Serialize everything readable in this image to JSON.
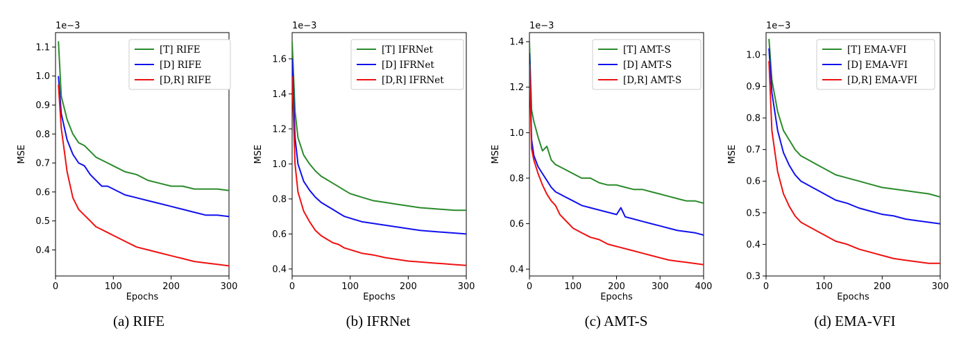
{
  "figure": {
    "panels": [
      {
        "caption": "(a) RIFE"
      },
      {
        "caption": "(b) IFRNet"
      },
      {
        "caption": "(c) AMT-S"
      },
      {
        "caption": "(d) EMA-VFI"
      }
    ]
  },
  "chart_data": [
    {
      "type": "line",
      "title": "",
      "xlabel": "Epochs",
      "ylabel": "MSE",
      "y_offset_label": "1e−3",
      "xlim": [
        0,
        300
      ],
      "ylim": [
        0.31,
        1.15
      ],
      "xticks": [
        0,
        100,
        200,
        300
      ],
      "yticks": [
        0.4,
        0.5,
        0.6,
        0.7,
        0.8,
        0.9,
        1.0,
        1.1
      ],
      "ytick_labels": [
        "0.4",
        "0.5",
        "0.6",
        "0.7",
        "0.8",
        "0.9",
        "1.0",
        "1.1"
      ],
      "legend_position": "top-right",
      "series": [
        {
          "name": "[T] RIFE",
          "color": "#2a8a2a",
          "x": [
            5,
            10,
            20,
            30,
            40,
            50,
            60,
            70,
            80,
            90,
            100,
            120,
            140,
            160,
            180,
            200,
            220,
            240,
            260,
            280,
            300
          ],
          "values": [
            1.12,
            0.93,
            0.85,
            0.8,
            0.77,
            0.76,
            0.74,
            0.72,
            0.71,
            0.7,
            0.69,
            0.67,
            0.66,
            0.64,
            0.63,
            0.62,
            0.62,
            0.61,
            0.61,
            0.61,
            0.605
          ]
        },
        {
          "name": "[D] RIFE",
          "color": "#1010ee",
          "x": [
            5,
            10,
            20,
            30,
            40,
            50,
            60,
            70,
            80,
            90,
            100,
            120,
            140,
            160,
            180,
            200,
            220,
            240,
            260,
            280,
            300
          ],
          "values": [
            1.0,
            0.87,
            0.78,
            0.73,
            0.7,
            0.69,
            0.66,
            0.64,
            0.62,
            0.62,
            0.61,
            0.59,
            0.58,
            0.57,
            0.56,
            0.55,
            0.54,
            0.53,
            0.52,
            0.52,
            0.515
          ]
        },
        {
          "name": "[D,R] RIFE",
          "color": "#ee1111",
          "x": [
            5,
            10,
            20,
            30,
            40,
            50,
            60,
            70,
            80,
            90,
            100,
            120,
            140,
            160,
            180,
            200,
            220,
            240,
            260,
            280,
            300
          ],
          "values": [
            0.97,
            0.82,
            0.67,
            0.58,
            0.54,
            0.52,
            0.5,
            0.48,
            0.47,
            0.46,
            0.45,
            0.43,
            0.41,
            0.4,
            0.39,
            0.38,
            0.37,
            0.36,
            0.355,
            0.35,
            0.345
          ]
        }
      ]
    },
    {
      "type": "line",
      "title": "",
      "xlabel": "Epochs",
      "ylabel": "MSE",
      "y_offset_label": "1e−3",
      "xlim": [
        0,
        300
      ],
      "ylim": [
        0.36,
        1.75
      ],
      "xticks": [
        0,
        100,
        200,
        300
      ],
      "yticks": [
        0.4,
        0.6,
        0.8,
        1.0,
        1.2,
        1.4,
        1.6
      ],
      "ytick_labels": [
        "0.4",
        "0.6",
        "0.8",
        "1.0",
        "1.2",
        "1.4",
        "1.6"
      ],
      "legend_position": "top-right",
      "series": [
        {
          "name": "[T] IFRNet",
          "color": "#2a8a2a",
          "x": [
            0,
            5,
            10,
            20,
            30,
            40,
            50,
            60,
            70,
            80,
            90,
            100,
            120,
            140,
            160,
            180,
            200,
            220,
            240,
            260,
            280,
            300
          ],
          "values": [
            1.7,
            1.3,
            1.15,
            1.05,
            1.0,
            0.96,
            0.93,
            0.91,
            0.89,
            0.87,
            0.85,
            0.83,
            0.81,
            0.79,
            0.78,
            0.77,
            0.76,
            0.75,
            0.745,
            0.74,
            0.735,
            0.735
          ]
        },
        {
          "name": "[D] IFRNet",
          "color": "#1010ee",
          "x": [
            0,
            5,
            10,
            20,
            30,
            40,
            50,
            60,
            70,
            80,
            90,
            100,
            120,
            140,
            160,
            180,
            200,
            220,
            240,
            260,
            280,
            300
          ],
          "values": [
            1.6,
            1.15,
            1.0,
            0.9,
            0.85,
            0.81,
            0.78,
            0.76,
            0.74,
            0.72,
            0.7,
            0.69,
            0.67,
            0.66,
            0.65,
            0.64,
            0.63,
            0.62,
            0.615,
            0.61,
            0.605,
            0.6
          ]
        },
        {
          "name": "[D,R] IFRNet",
          "color": "#ee1111",
          "x": [
            0,
            5,
            10,
            20,
            30,
            40,
            50,
            60,
            70,
            80,
            90,
            100,
            120,
            140,
            160,
            180,
            200,
            220,
            240,
            260,
            280,
            300
          ],
          "values": [
            1.5,
            1.0,
            0.84,
            0.73,
            0.67,
            0.62,
            0.59,
            0.57,
            0.55,
            0.54,
            0.52,
            0.51,
            0.49,
            0.48,
            0.465,
            0.455,
            0.445,
            0.44,
            0.435,
            0.43,
            0.425,
            0.42
          ]
        }
      ]
    },
    {
      "type": "line",
      "title": "",
      "xlabel": "Epochs",
      "ylabel": "MSE",
      "y_offset_label": "1e−3",
      "xlim": [
        0,
        400
      ],
      "ylim": [
        0.37,
        1.44
      ],
      "xticks": [
        0,
        100,
        200,
        300,
        400
      ],
      "yticks": [
        0.4,
        0.6,
        0.8,
        1.0,
        1.2,
        1.4
      ],
      "ytick_labels": [
        "0.4",
        "0.6",
        "0.8",
        "1.0",
        "1.2",
        "1.4"
      ],
      "legend_position": "top-right",
      "series": [
        {
          "name": "[T] AMT-S",
          "color": "#2a8a2a",
          "x": [
            0,
            5,
            10,
            20,
            30,
            40,
            50,
            60,
            70,
            80,
            100,
            120,
            140,
            160,
            180,
            200,
            220,
            240,
            260,
            280,
            300,
            320,
            340,
            360,
            380,
            400
          ],
          "values": [
            1.4,
            1.1,
            1.05,
            0.98,
            0.92,
            0.94,
            0.88,
            0.86,
            0.85,
            0.84,
            0.82,
            0.8,
            0.8,
            0.78,
            0.77,
            0.77,
            0.76,
            0.75,
            0.75,
            0.74,
            0.73,
            0.72,
            0.71,
            0.7,
            0.7,
            0.69
          ]
        },
        {
          "name": "[D] AMT-S",
          "color": "#1010ee",
          "x": [
            0,
            5,
            10,
            20,
            30,
            40,
            50,
            60,
            70,
            80,
            100,
            120,
            140,
            160,
            180,
            200,
            210,
            220,
            240,
            260,
            280,
            300,
            320,
            340,
            360,
            380,
            400
          ],
          "values": [
            1.35,
            0.97,
            0.9,
            0.85,
            0.82,
            0.79,
            0.76,
            0.74,
            0.73,
            0.72,
            0.7,
            0.68,
            0.67,
            0.66,
            0.65,
            0.64,
            0.67,
            0.63,
            0.62,
            0.61,
            0.6,
            0.59,
            0.58,
            0.57,
            0.565,
            0.56,
            0.55
          ]
        },
        {
          "name": "[D,R] AMT-S",
          "color": "#ee1111",
          "x": [
            0,
            5,
            10,
            20,
            30,
            40,
            50,
            60,
            70,
            80,
            100,
            120,
            140,
            160,
            180,
            200,
            220,
            240,
            260,
            280,
            300,
            320,
            340,
            360,
            380,
            400
          ],
          "values": [
            1.3,
            0.93,
            0.88,
            0.82,
            0.77,
            0.73,
            0.7,
            0.68,
            0.64,
            0.62,
            0.58,
            0.56,
            0.54,
            0.53,
            0.51,
            0.5,
            0.49,
            0.48,
            0.47,
            0.46,
            0.45,
            0.44,
            0.435,
            0.43,
            0.425,
            0.42
          ]
        }
      ]
    },
    {
      "type": "line",
      "title": "",
      "xlabel": "Epochs",
      "ylabel": "MSE",
      "y_offset_label": "1e−3",
      "xlim": [
        0,
        300
      ],
      "ylim": [
        0.3,
        1.07
      ],
      "xticks": [
        0,
        100,
        200,
        300
      ],
      "yticks": [
        0.3,
        0.4,
        0.5,
        0.6,
        0.7,
        0.8,
        0.9,
        1.0
      ],
      "ytick_labels": [
        "0.3",
        "0.4",
        "0.5",
        "0.6",
        "0.7",
        "0.8",
        "0.9",
        "1.0"
      ],
      "legend_position": "top-right",
      "series": [
        {
          "name": "[T] EMA-VFI",
          "color": "#2a8a2a",
          "x": [
            5,
            10,
            20,
            30,
            40,
            50,
            60,
            70,
            80,
            90,
            100,
            120,
            140,
            160,
            180,
            200,
            220,
            240,
            260,
            280,
            300
          ],
          "values": [
            1.05,
            0.92,
            0.82,
            0.76,
            0.73,
            0.7,
            0.68,
            0.67,
            0.66,
            0.65,
            0.64,
            0.62,
            0.61,
            0.6,
            0.59,
            0.58,
            0.575,
            0.57,
            0.565,
            0.56,
            0.55
          ]
        },
        {
          "name": "[D] EMA-VFI",
          "color": "#1010ee",
          "x": [
            5,
            10,
            20,
            30,
            40,
            50,
            60,
            70,
            80,
            90,
            100,
            120,
            140,
            160,
            180,
            200,
            220,
            240,
            260,
            280,
            300
          ],
          "values": [
            1.02,
            0.88,
            0.76,
            0.69,
            0.65,
            0.62,
            0.6,
            0.59,
            0.58,
            0.57,
            0.56,
            0.54,
            0.53,
            0.515,
            0.505,
            0.495,
            0.49,
            0.48,
            0.475,
            0.47,
            0.465
          ]
        },
        {
          "name": "[D,R] EMA-VFI",
          "color": "#ee1111",
          "x": [
            5,
            10,
            20,
            30,
            40,
            50,
            60,
            70,
            80,
            90,
            100,
            120,
            140,
            160,
            180,
            200,
            220,
            240,
            260,
            280,
            300
          ],
          "values": [
            0.98,
            0.76,
            0.63,
            0.56,
            0.52,
            0.49,
            0.47,
            0.46,
            0.45,
            0.44,
            0.43,
            0.41,
            0.4,
            0.385,
            0.375,
            0.365,
            0.355,
            0.35,
            0.345,
            0.34,
            0.34
          ]
        }
      ]
    }
  ]
}
